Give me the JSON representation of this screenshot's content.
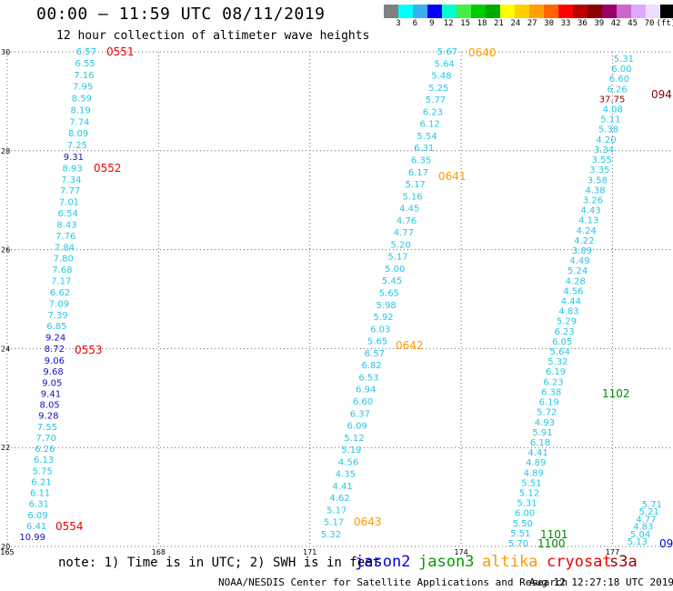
{
  "title": "00:00 – 11:59 UTC 08/11/2019",
  "subtitle": "12 hour collection of altimeter wave heights",
  "colorbar": {
    "colors": [
      "#808080",
      "#00ffff",
      "#3ab0f0",
      "#0000ff",
      "#00ffcc",
      "#44ee44",
      "#00cc00",
      "#00aa00",
      "#ffff00",
      "#ffd000",
      "#ffa000",
      "#ff6600",
      "#ff0000",
      "#bb0000",
      "#880000",
      "#990066",
      "#cc66cc",
      "#ddaaff",
      "#eeddff",
      "#000000"
    ],
    "labels": [
      "3",
      "6",
      "9",
      "12",
      "15",
      "18",
      "21",
      "24",
      "27",
      "30",
      "33",
      "36",
      "39",
      "42",
      "45",
      "70",
      "(ft)"
    ]
  },
  "map": {
    "lon_range": [
      165,
      178.2
    ],
    "lat_range": [
      20,
      30
    ],
    "lon_ticks": [
      "165",
      "168",
      "171",
      "174",
      "177"
    ],
    "lat_ticks": [
      "30",
      "28",
      "26",
      "24",
      "22",
      "20"
    ],
    "grid": true
  },
  "passes": [
    {
      "label": "0551",
      "satellite": "cryosat",
      "color": "#ee0000"
    },
    {
      "label": "0552",
      "satellite": "cryosat",
      "color": "#ee0000"
    },
    {
      "label": "0553",
      "satellite": "cryosat",
      "color": "#ee0000"
    },
    {
      "label": "0554",
      "satellite": "cryosat",
      "color": "#ee0000"
    },
    {
      "label": "0640",
      "satellite": "altika",
      "color": "#ff9900"
    },
    {
      "label": "0641",
      "satellite": "altika",
      "color": "#ff9900"
    },
    {
      "label": "0642",
      "satellite": "altika",
      "color": "#ff9900"
    },
    {
      "label": "0643",
      "satellite": "altika",
      "color": "#ff9900"
    },
    {
      "label": "1102",
      "satellite": "jason3",
      "color": "#008800"
    },
    {
      "label": "1101",
      "satellite": "jason3",
      "color": "#008800"
    },
    {
      "label": "1100",
      "satellite": "jason3",
      "color": "#008800"
    },
    {
      "label": "094",
      "satellite": "s3a",
      "color": "#880000"
    },
    {
      "label": "09",
      "satellite": "jason2",
      "color": "#0000cc"
    }
  ],
  "tracks": {
    "track_a_cyan": [
      "6.57",
      "6.55",
      "7.16",
      "7.95",
      "8.59",
      "8.19",
      "7.74",
      "8.09",
      "7.25"
    ],
    "track_a_mid": [
      "9.31",
      "8.93",
      "7.34",
      "7.77",
      "7.01",
      "6.54",
      "8.43",
      "7.76",
      "7.84",
      "7.80",
      "7.68",
      "7.17",
      "6.62",
      "7.09",
      "7.39",
      "6.85",
      "9.24",
      "8.72"
    ],
    "track_a_blue": [
      "9.06",
      "9.68",
      "9.05",
      "9.41",
      "8.05",
      "9.28",
      "7.55",
      "7.70",
      "6.26",
      "6.13",
      "5.75",
      "6.21",
      "6.11",
      "6.31",
      "6.09",
      "6.41",
      "10.99"
    ],
    "track_b": [
      "5.67",
      "5.64",
      "5.48",
      "5.25",
      "5.77",
      "6.23",
      "6.12",
      "5.54",
      "6.31",
      "6.35",
      "6.17",
      "5.17",
      "5.16",
      "4.45",
      "4.76",
      "4.77",
      "5.20",
      "5.17",
      "5.00",
      "5.45",
      "5.65",
      "5.98",
      "5.92",
      "6.03",
      "5.65",
      "6.57",
      "6.82",
      "6.53",
      "6.94",
      "6.60",
      "6.37",
      "6.09",
      "5.12",
      "5.19",
      "4.56",
      "4.35",
      "4.41",
      "4.62",
      "5.17",
      "5.17",
      "5.32"
    ],
    "track_c": [
      "5.31",
      "6.00",
      "6.60",
      "6.26",
      "37.75",
      "4.08",
      "5.11",
      "5.38",
      "4.20",
      "3.34",
      "3.55",
      "3.35",
      "3.58",
      "4.38",
      "3.26",
      "4.43",
      "4.13",
      "4.24",
      "4.22",
      "3.89",
      "4.49",
      "5.24",
      "4.28",
      "4.56",
      "4.44",
      "4.83",
      "5.29",
      "6.23",
      "6.05",
      "5.64",
      "5.32",
      "6.19",
      "6.23",
      "6.38",
      "6.19",
      "5.72",
      "4.93",
      "5.91",
      "6.18",
      "4.41",
      "4.89",
      "4.89",
      "5.51",
      "5.12",
      "5.31",
      "6.00",
      "5.50",
      "5.51",
      "5.70"
    ],
    "track_d": [
      "5.71",
      "5.21",
      "4.77",
      "4.83",
      "5.04",
      "5.13"
    ]
  },
  "note": "note: 1) Time is in UTC; 2) SWH is in feet",
  "legend": [
    {
      "name": "jason2",
      "color": "#0000dd"
    },
    {
      "name": "jason3",
      "color": "#009900"
    },
    {
      "name": "altika",
      "color": "#ff9900"
    },
    {
      "name": "cryosat",
      "color": "#ee0000"
    },
    {
      "name": "s3a",
      "color": "#990000"
    }
  ],
  "footer": {
    "credit": "NOAA/NESDIS Center for Satellite Applications and Research",
    "timestamp": "Aug 12 12:27:18 UTC 2019"
  }
}
